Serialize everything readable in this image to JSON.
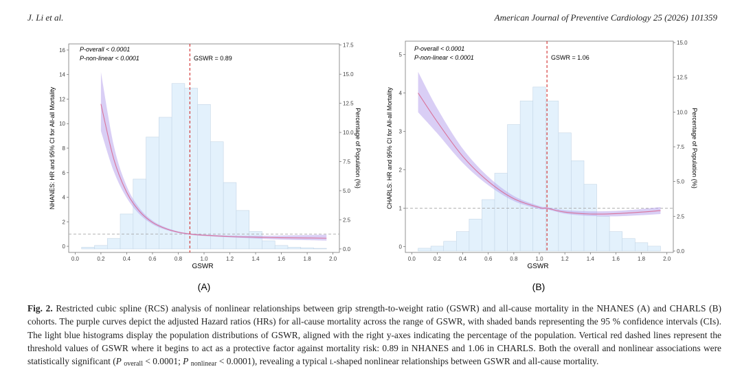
{
  "header": {
    "left": "J. Li et al.",
    "right": "American Journal of Preventive Cardiology 25 (2026) 101359"
  },
  "figure": {
    "panels": [
      {
        "label": "(A)",
        "y_left_label": "NHANES: HR and 95% CI for All-all Mortality",
        "y_right_label": "Percentage of Population (%)",
        "x_label": "GSWR",
        "p_overall": "P-overall < 0.0001",
        "p_nonlinear": "P-non-linear < 0.0001",
        "threshold_label": "GSWR = 0.89"
      },
      {
        "label": "(B)",
        "y_left_label": "CHARLS: HR and 95% CI for All-all Mortality",
        "y_right_label": "Percentage of Population (%)",
        "x_label": "GSWR",
        "p_overall": "P-overall < 0.0001",
        "p_nonlinear": "P-non-linear < 0.0001",
        "threshold_label": "GSWR = 1.06"
      }
    ]
  },
  "chart_data": [
    {
      "type": "line",
      "panel": "A",
      "cohort": "NHANES",
      "xlabel": "GSWR",
      "ylabel": "NHANES: HR and 95% CI for All-all Mortality",
      "y2label": "Percentage of Population (%)",
      "xlim": [
        -0.05,
        2.05
      ],
      "ylim": [
        -0.5,
        16.5
      ],
      "y2lim": [
        -0.3,
        17.6
      ],
      "x_ticks": [
        0.0,
        0.2,
        0.4,
        0.6,
        0.8,
        1.0,
        1.2,
        1.4,
        1.6,
        1.8,
        2.0
      ],
      "y_ticks": [
        0,
        2,
        4,
        6,
        8,
        10,
        12,
        14,
        16
      ],
      "y2_ticks": [
        0.0,
        2.5,
        5.0,
        7.5,
        10.0,
        12.5,
        15.0,
        17.5
      ],
      "threshold_x": 0.89,
      "reference_y": 1,
      "histogram": {
        "bin_edges": [
          0.05,
          0.15,
          0.25,
          0.35,
          0.45,
          0.55,
          0.65,
          0.75,
          0.85,
          0.95,
          1.05,
          1.15,
          1.25,
          1.35,
          1.45,
          1.55,
          1.65,
          1.75,
          1.85,
          1.95
        ],
        "percent": [
          0.15,
          0.3,
          0.9,
          3.0,
          6.0,
          9.6,
          11.3,
          14.2,
          13.8,
          12.4,
          9.2,
          5.7,
          3.3,
          1.5,
          0.7,
          0.3,
          0.15,
          0.1,
          0.05
        ]
      },
      "series": [
        {
          "name": "HR",
          "x": [
            0.2,
            0.3,
            0.4,
            0.5,
            0.6,
            0.7,
            0.8,
            0.89,
            1.0,
            1.2,
            1.4,
            1.6,
            1.8,
            1.95
          ],
          "y": [
            11.6,
            7.1,
            4.4,
            2.85,
            1.95,
            1.45,
            1.15,
            1.0,
            0.9,
            0.8,
            0.74,
            0.7,
            0.68,
            0.66
          ]
        },
        {
          "name": "95% CI upper",
          "x": [
            0.2,
            0.3,
            0.4,
            0.5,
            0.6,
            0.7,
            0.8,
            0.89,
            1.0,
            1.2,
            1.4,
            1.6,
            1.8,
            1.95
          ],
          "y": [
            14.2,
            8.2,
            4.9,
            3.1,
            2.1,
            1.55,
            1.22,
            1.06,
            0.97,
            0.88,
            0.86,
            0.88,
            0.92,
            0.95
          ]
        },
        {
          "name": "95% CI lower",
          "x": [
            0.2,
            0.3,
            0.4,
            0.5,
            0.6,
            0.7,
            0.8,
            0.89,
            1.0,
            1.2,
            1.4,
            1.6,
            1.8,
            1.95
          ],
          "y": [
            9.4,
            6.1,
            3.95,
            2.6,
            1.8,
            1.35,
            1.08,
            0.94,
            0.84,
            0.72,
            0.63,
            0.55,
            0.5,
            0.46
          ]
        }
      ]
    },
    {
      "type": "line",
      "panel": "B",
      "cohort": "CHARLS",
      "xlabel": "GSWR",
      "ylabel": "CHARLS: HR and 95% CI for All-all Mortality",
      "y2label": "Percentage of Population (%)",
      "xlim": [
        -0.05,
        2.05
      ],
      "ylim": [
        -0.15,
        5.35
      ],
      "y2lim": [
        -0.1,
        15.1
      ],
      "x_ticks": [
        0.0,
        0.2,
        0.4,
        0.6,
        0.8,
        1.0,
        1.2,
        1.4,
        1.6,
        1.8,
        2.0
      ],
      "y_ticks": [
        0,
        1,
        2,
        3,
        4,
        5
      ],
      "y2_ticks": [
        0.0,
        2.5,
        5.0,
        7.5,
        10.0,
        12.5,
        15.0
      ],
      "threshold_x": 1.06,
      "reference_y": 1,
      "histogram": {
        "bin_edges": [
          0.05,
          0.15,
          0.25,
          0.35,
          0.45,
          0.55,
          0.65,
          0.75,
          0.85,
          0.95,
          1.05,
          1.15,
          1.25,
          1.35,
          1.45,
          1.55,
          1.65,
          1.75,
          1.85,
          1.95
        ],
        "percent": [
          0.2,
          0.35,
          0.7,
          1.4,
          2.3,
          3.7,
          5.6,
          9.1,
          10.8,
          11.8,
          10.8,
          8.5,
          6.5,
          4.8,
          2.5,
          1.4,
          0.9,
          0.6,
          0.35
        ]
      },
      "series": [
        {
          "name": "HR",
          "x": [
            0.05,
            0.2,
            0.4,
            0.6,
            0.8,
            1.0,
            1.06,
            1.2,
            1.4,
            1.6,
            1.8,
            1.95
          ],
          "y": [
            4.0,
            3.25,
            2.35,
            1.7,
            1.25,
            1.02,
            1.0,
            0.9,
            0.85,
            0.86,
            0.9,
            0.94
          ]
        },
        {
          "name": "95% CI upper",
          "x": [
            0.05,
            0.2,
            0.4,
            0.6,
            0.8,
            1.0,
            1.06,
            1.2,
            1.4,
            1.6,
            1.8,
            1.95
          ],
          "y": [
            4.55,
            3.6,
            2.55,
            1.82,
            1.32,
            1.06,
            1.03,
            0.95,
            0.92,
            0.93,
            0.98,
            1.03
          ]
        },
        {
          "name": "95% CI lower",
          "x": [
            0.05,
            0.2,
            0.4,
            0.6,
            0.8,
            1.0,
            1.06,
            1.2,
            1.4,
            1.6,
            1.8,
            1.95
          ],
          "y": [
            3.5,
            2.95,
            2.18,
            1.6,
            1.19,
            0.98,
            0.97,
            0.86,
            0.8,
            0.79,
            0.82,
            0.85
          ]
        }
      ]
    }
  ],
  "caption": {
    "label": "Fig. 2.",
    "part1": "Restricted cubic spline (RCS) analysis of nonlinear relationships between grip strength-to-weight ratio (GSWR) and all-cause mortality in the NHANES (A) and CHARLS (B) cohorts. The purple curves depict the adjusted Hazard ratios (HRs) for all-cause mortality across the range of GSWR, with shaded bands representing the 95 % confidence intervals (CIs). The light blue histograms display the population distributions of GSWR, aligned with the right y-axes indicating the percentage of the population. Vertical red dashed lines represent the threshold values of GSWR where it begins to act as a protective factor against mortality risk: 0.89 in NHANES and 1.06 in CHARLS. Both the overall and nonlinear associations were statistically significant (",
    "p1": "P",
    "sub1": "overall",
    "mid1": "< 0.0001; ",
    "p2": "P",
    "sub2": "nonlinear",
    "mid2": "< 0.0001), revealing a typical ",
    "lshape": "l",
    "part3": "-shaped nonlinear relationships between GSWR and all-cause mortality."
  },
  "colors": {
    "histogram_fill": "#e3f1fc",
    "histogram_stroke": "#c4d6e6",
    "hr_line": "#d9739a",
    "ci_band": "#b9a6ec",
    "threshold_line": "#d22a2a",
    "reference_line": "#a8a8a8"
  }
}
